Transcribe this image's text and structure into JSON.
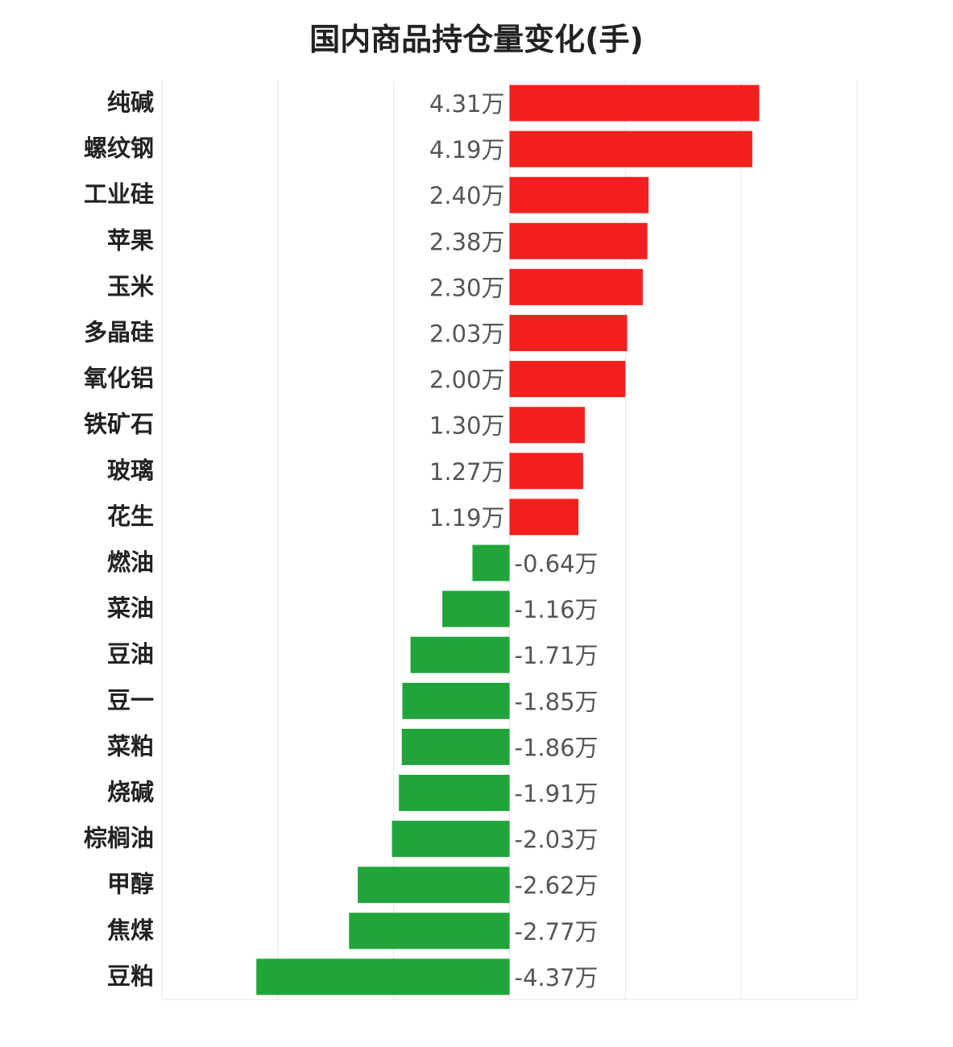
{
  "chart_data": {
    "type": "bar",
    "orientation": "horizontal",
    "title": "国内商品持仓量变化(手)",
    "unit_suffix": "万",
    "categories": [
      "纯碱",
      "螺纹钢",
      "工业硅",
      "苹果",
      "玉米",
      "多晶硅",
      "氧化铝",
      "铁矿石",
      "玻璃",
      "花生",
      "燃油",
      "菜油",
      "豆油",
      "豆一",
      "菜粕",
      "烧碱",
      "棕榈油",
      "甲醇",
      "焦煤",
      "豆粕"
    ],
    "values": [
      4.31,
      4.19,
      2.4,
      2.38,
      2.3,
      2.03,
      2.0,
      1.3,
      1.27,
      1.19,
      -0.64,
      -1.16,
      -1.71,
      -1.85,
      -1.86,
      -1.91,
      -2.03,
      -2.62,
      -2.77,
      -4.37
    ],
    "value_labels": [
      "4.31万",
      "4.19万",
      "2.40万",
      "2.38万",
      "2.30万",
      "2.03万",
      "2.00万",
      "1.30万",
      "1.27万",
      "1.19万",
      "-0.64万",
      "-1.16万",
      "-1.71万",
      "-1.85万",
      "-1.86万",
      "-1.91万",
      "-2.03万",
      "-2.62万",
      "-2.77万",
      "-4.37万"
    ],
    "xlim": [
      -6,
      6
    ],
    "grid": true,
    "colors": {
      "positive": "#f42020",
      "negative": "#21a43a",
      "grid": "#e6e6e6"
    }
  }
}
